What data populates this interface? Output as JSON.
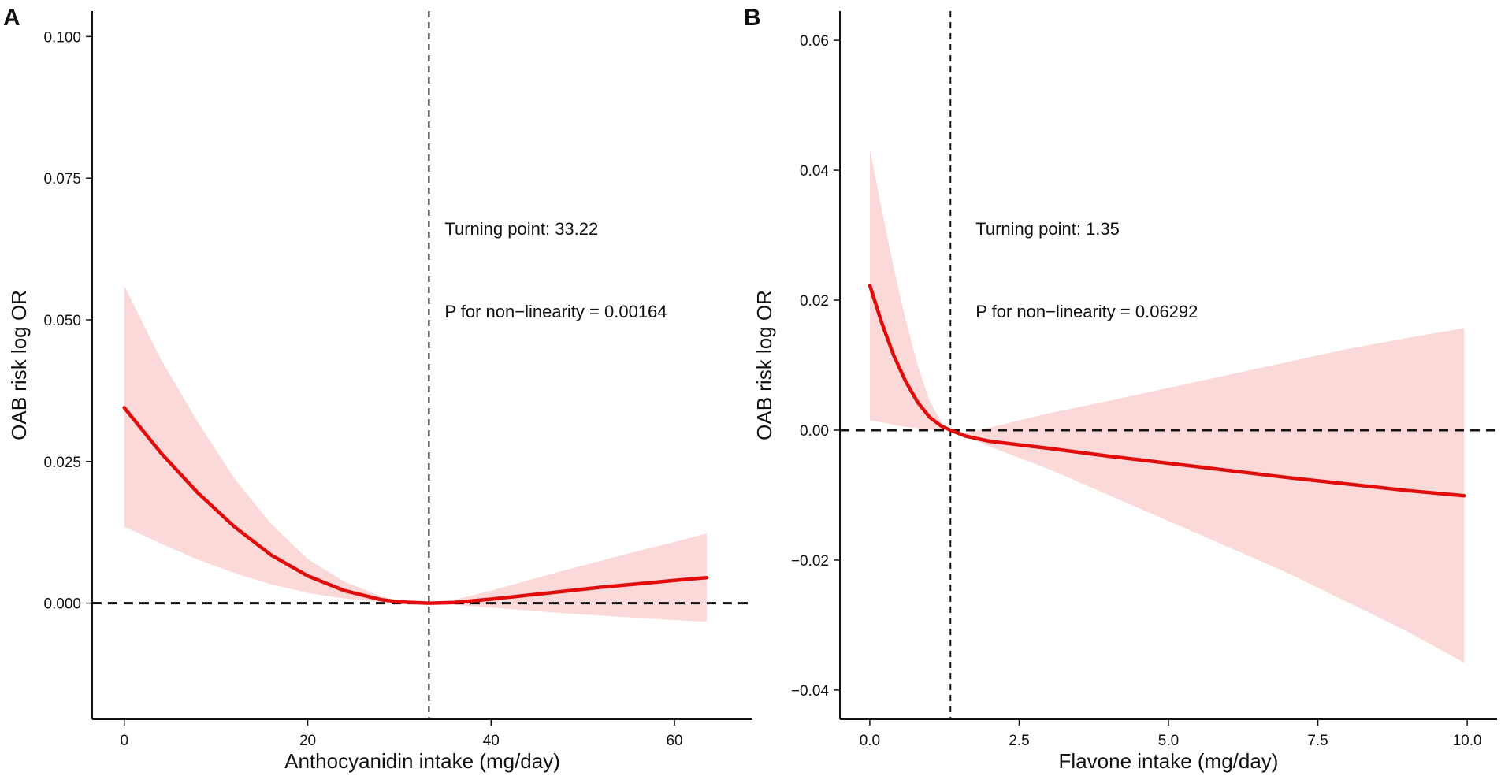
{
  "colors": {
    "line": "#e00d0d",
    "band": "#fcd9d9"
  },
  "chart_data": [
    {
      "type": "line",
      "panel": "A",
      "xlabel": "Anthocyanidin intake (mg/day)",
      "ylabel": "OAB risk log OR",
      "xlim": [
        -3.5,
        68.5
      ],
      "ylim": [
        -0.0205,
        0.1045
      ],
      "xticks": [
        0,
        20,
        40,
        60
      ],
      "xtick_labels": [
        "0",
        "20",
        "40",
        "60"
      ],
      "yticks": [
        0.0,
        0.025,
        0.05,
        0.075,
        0.1
      ],
      "ytick_labels": [
        "0.000",
        "0.025",
        "0.050",
        "0.075",
        "0.100"
      ],
      "turning_point": 33.22,
      "reference_y": 0,
      "annotations": [
        "Turning point: 33.22",
        "P for non−linearity = 0.00164"
      ],
      "series": {
        "x": [
          0,
          4,
          8,
          12,
          16,
          20,
          24,
          28,
          30,
          33.22,
          36,
          40,
          44,
          48,
          52,
          56,
          60,
          63.5
        ],
        "y": [
          0.0345,
          0.0265,
          0.0195,
          0.0135,
          0.0085,
          0.0048,
          0.0022,
          0.0006,
          0.0002,
          0.0,
          0.0001,
          0.0007,
          0.0014,
          0.0021,
          0.0028,
          0.0034,
          0.004,
          0.0045
        ],
        "lower": [
          0.0135,
          0.0105,
          0.0077,
          0.0053,
          0.0033,
          0.0018,
          0.0008,
          0.0002,
          0.0001,
          0.0,
          -0.0003,
          -0.0008,
          -0.0013,
          -0.0018,
          -0.0022,
          -0.0026,
          -0.003,
          -0.0033
        ],
        "upper": [
          0.056,
          0.043,
          0.032,
          0.022,
          0.014,
          0.0078,
          0.0038,
          0.0012,
          0.0004,
          0.0,
          0.0006,
          0.0022,
          0.004,
          0.0058,
          0.0075,
          0.0092,
          0.0108,
          0.0123
        ]
      }
    },
    {
      "type": "line",
      "panel": "B",
      "xlabel": "Flavone intake (mg/day)",
      "ylabel": "OAB risk log OR",
      "xlim": [
        -0.5,
        10.5
      ],
      "ylim": [
        -0.0445,
        0.0645
      ],
      "xticks": [
        0.0,
        2.5,
        5.0,
        7.5,
        10.0
      ],
      "xtick_labels": [
        "0.0",
        "2.5",
        "5.0",
        "7.5",
        "10.0"
      ],
      "yticks": [
        -0.04,
        -0.02,
        0.0,
        0.02,
        0.04,
        0.06
      ],
      "ytick_labels": [
        "−0.04",
        "−0.02",
        "0.00",
        "0.02",
        "0.04",
        "0.06"
      ],
      "turning_point": 1.35,
      "reference_y": 0,
      "annotations": [
        "Turning point: 1.35",
        "P for non−linearity = 0.06292"
      ],
      "series": {
        "x": [
          0,
          0.2,
          0.4,
          0.6,
          0.8,
          1.0,
          1.2,
          1.35,
          1.6,
          2.0,
          3.0,
          4.0,
          5.0,
          6.0,
          7.0,
          8.0,
          9.0,
          9.95
        ],
        "y": [
          0.0223,
          0.0165,
          0.0115,
          0.0075,
          0.0043,
          0.002,
          0.0006,
          0.0,
          -0.0009,
          -0.0017,
          -0.0028,
          -0.004,
          -0.0051,
          -0.0062,
          -0.0073,
          -0.0083,
          -0.0093,
          -0.0101
        ],
        "lower": [
          0.0015,
          0.0012,
          0.0008,
          0.0005,
          0.0003,
          0.0001,
          0.0,
          0.0,
          -0.001,
          -0.0025,
          -0.006,
          -0.01,
          -0.014,
          -0.018,
          -0.022,
          -0.0265,
          -0.031,
          -0.0358
        ],
        "upper": [
          0.0433,
          0.034,
          0.025,
          0.017,
          0.01,
          0.0045,
          0.0012,
          0.0,
          -0.0004,
          0.0004,
          0.0026,
          0.0045,
          0.0065,
          0.0085,
          0.0105,
          0.0125,
          0.0142,
          0.0157
        ]
      }
    }
  ]
}
